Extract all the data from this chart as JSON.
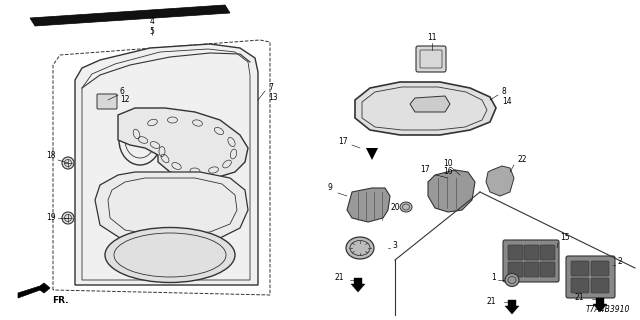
{
  "bg_color": "#ffffff",
  "diagram_id": "T7A4B3910",
  "black": "#000000",
  "darkgray": "#333333",
  "gray": "#666666",
  "lightgray": "#aaaaaa"
}
